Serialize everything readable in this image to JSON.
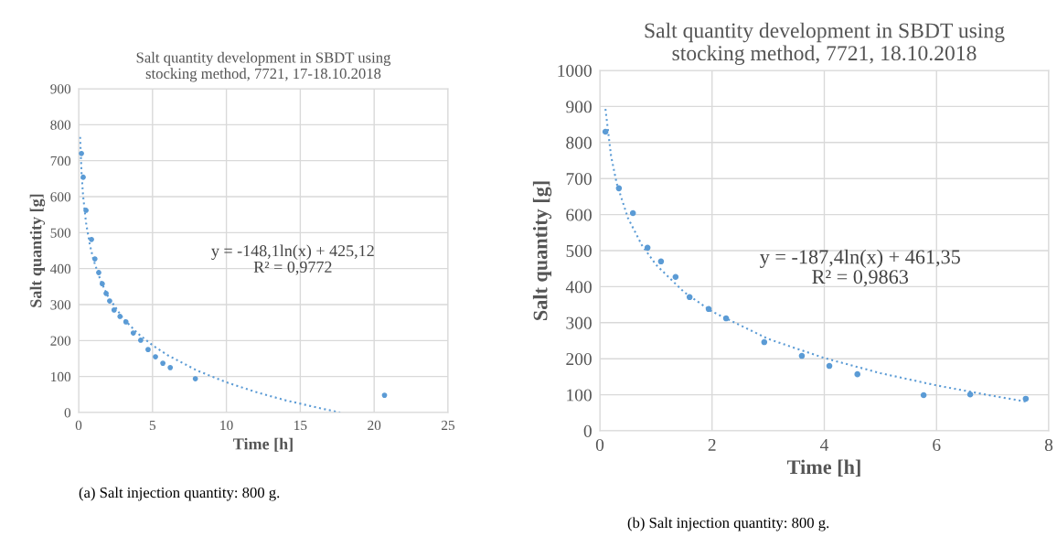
{
  "chart_data": [
    {
      "type": "scatter",
      "title": "Salt quantity development in SBDT using\nstocking method, 7721, 17-18.10.2018",
      "xlabel": "Time [h]",
      "ylabel": "Salt quantity [g]",
      "xlim": [
        0,
        25
      ],
      "xticks": [
        0,
        5,
        10,
        15,
        20,
        25
      ],
      "ylim": [
        0,
        900
      ],
      "yticks": [
        0,
        100,
        200,
        300,
        400,
        500,
        600,
        700,
        800,
        900
      ],
      "grid": true,
      "series": [
        {
          "type": "scatter",
          "marker": "circle",
          "color": "#5b9bd5",
          "x": [
            0.19,
            0.31,
            0.5,
            0.87,
            1.1,
            1.36,
            1.6,
            1.86,
            2.1,
            2.4,
            2.8,
            3.2,
            3.7,
            4.2,
            4.7,
            5.2,
            5.7,
            6.2,
            7.9,
            20.7
          ],
          "values": [
            720,
            654,
            562,
            481,
            427,
            389,
            358,
            331,
            310,
            285,
            267,
            252,
            221,
            201,
            175,
            155,
            137,
            125,
            94,
            48
          ]
        },
        {
          "type": "line",
          "line_style": "dotted",
          "color": "#5b9bd5",
          "x": [
            0.1,
            0.2,
            0.3,
            0.5,
            0.75,
            1,
            1.5,
            2,
            3,
            4,
            5,
            6,
            8,
            10,
            12,
            14,
            16,
            17.7
          ],
          "values": [
            766,
            664,
            603,
            528,
            468,
            425,
            365,
            322,
            262,
            220,
            187,
            160,
            117,
            84,
            57,
            34,
            15,
            0
          ]
        }
      ],
      "annotations": [
        "y = -148,1ln(x) + 425,12\nR² = 0,9772",
        "(a) Salt injection quantity: 800 g."
      ]
    },
    {
      "type": "scatter",
      "title": "Salt quantity development in SBDT using\nstocking method, 7721, 18.10.2018",
      "xlabel": "Time [h]",
      "ylabel": "Salt quantity [g]",
      "xlim": [
        0,
        8
      ],
      "xticks": [
        0,
        2,
        4,
        6,
        8
      ],
      "ylim": [
        0,
        1000
      ],
      "yticks": [
        0,
        100,
        200,
        300,
        400,
        500,
        600,
        700,
        800,
        900,
        1000
      ],
      "grid": true,
      "series": [
        {
          "type": "scatter",
          "marker": "circle",
          "color": "#5b9bd5",
          "x": [
            0.1,
            0.34,
            0.59,
            0.85,
            1.09,
            1.35,
            1.6,
            1.94,
            2.25,
            2.93,
            3.6,
            4.09,
            4.59,
            5.77,
            6.6,
            7.59
          ],
          "values": [
            830,
            673,
            604,
            508,
            470,
            427,
            371,
            338,
            312,
            246,
            208,
            180,
            157,
            99,
            101,
            89
          ]
        },
        {
          "type": "line",
          "line_style": "dotted",
          "color": "#5b9bd5",
          "x": [
            0.1,
            0.2,
            0.3,
            0.5,
            0.75,
            1,
            1.5,
            2,
            3,
            4,
            5,
            6,
            7,
            7.6
          ],
          "values": [
            893,
            763,
            687,
            591,
            515,
            461,
            385,
            331,
            255,
            202,
            160,
            126,
            97,
            81
          ]
        }
      ],
      "annotations": [
        "y = -187,4ln(x) + 461,35\nR² = 0,9863",
        "(b) Salt injection quantity: 800 g."
      ]
    }
  ]
}
